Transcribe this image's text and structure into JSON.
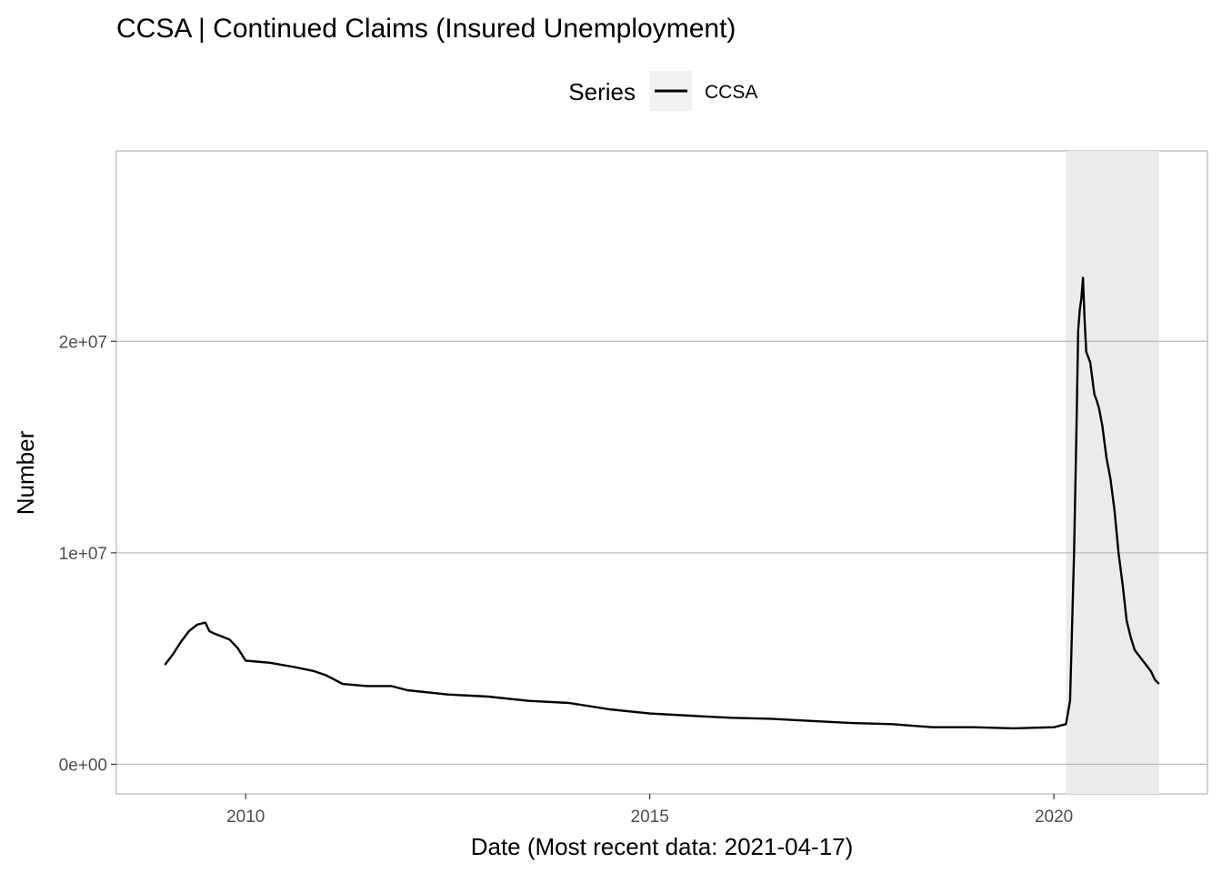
{
  "chart_data": {
    "type": "line",
    "title": "CCSA | Continued Claims (Insured Unemployment)",
    "xlabel": "Date (Most recent data: 2021-04-17)",
    "ylabel": "Number",
    "legend": {
      "title": "Series",
      "position": "top",
      "entries": [
        "CCSA"
      ]
    },
    "xlim": [
      2008.4,
      2021.9
    ],
    "ylim": [
      -1400000,
      29000000
    ],
    "x_ticks": [
      {
        "value": 2010,
        "label": "2010"
      },
      {
        "value": 2015,
        "label": "2015"
      },
      {
        "value": 2020,
        "label": "2020"
      }
    ],
    "y_ticks": [
      {
        "value": 0,
        "label": "0e+00"
      },
      {
        "value": 10000000,
        "label": "1e+07"
      },
      {
        "value": 20000000,
        "label": "2e+07"
      }
    ],
    "grid": "horizontal",
    "shaded_region": {
      "x_start": 2020.15,
      "x_end": 2021.3,
      "color": "#ebebeb"
    },
    "series": [
      {
        "name": "CCSA",
        "color": "#000000",
        "x": [
          2009.0,
          2009.1,
          2009.2,
          2009.3,
          2009.4,
          2009.5,
          2009.55,
          2009.6,
          2009.8,
          2009.9,
          2010.0,
          2010.3,
          2010.6,
          2010.85,
          2011.0,
          2011.2,
          2011.5,
          2011.8,
          2012.0,
          2012.5,
          2013.0,
          2013.5,
          2014.0,
          2014.5,
          2015.0,
          2015.5,
          2016.0,
          2016.5,
          2017.0,
          2017.5,
          2018.0,
          2018.5,
          2019.0,
          2019.5,
          2020.0,
          2020.15,
          2020.2,
          2020.25,
          2020.28,
          2020.3,
          2020.32,
          2020.34,
          2020.36,
          2020.38,
          2020.4,
          2020.45,
          2020.5,
          2020.53,
          2020.56,
          2020.6,
          2020.65,
          2020.7,
          2020.75,
          2020.8,
          2020.85,
          2020.9,
          2020.95,
          2021.0,
          2021.1,
          2021.2,
          2021.25,
          2021.3
        ],
        "values": [
          4700000,
          5200000,
          5800000,
          6300000,
          6600000,
          6700000,
          6300000,
          6200000,
          5900000,
          5500000,
          4900000,
          4800000,
          4600000,
          4400000,
          4200000,
          3800000,
          3700000,
          3700000,
          3500000,
          3300000,
          3200000,
          3000000,
          2900000,
          2600000,
          2400000,
          2300000,
          2200000,
          2150000,
          2050000,
          1950000,
          1900000,
          1750000,
          1750000,
          1700000,
          1750000,
          1900000,
          3000000,
          10000000,
          16000000,
          20500000,
          21500000,
          22000000,
          23000000,
          21000000,
          19500000,
          19000000,
          17500000,
          17200000,
          16800000,
          16000000,
          14500000,
          13500000,
          12000000,
          10000000,
          8500000,
          6800000,
          6000000,
          5400000,
          4900000,
          4400000,
          4000000,
          3800000
        ]
      }
    ]
  }
}
